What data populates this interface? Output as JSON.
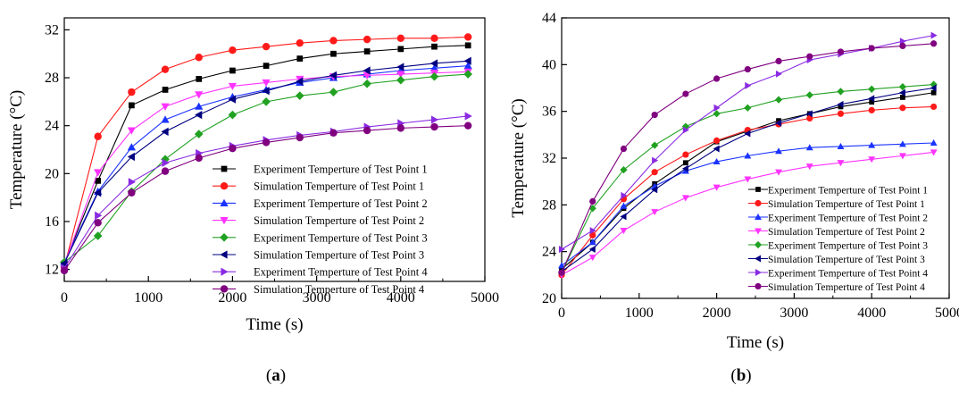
{
  "chart_data": [
    {
      "panel_label": "a",
      "type": "line",
      "xlabel": "Time (s)",
      "ylabel": "Temperature (°C)",
      "xlim": [
        0,
        5000
      ],
      "ylim": [
        11,
        33
      ],
      "xticks": [
        0,
        1000,
        2000,
        3000,
        4000,
        5000
      ],
      "yticks": [
        12,
        16,
        20,
        24,
        28,
        32
      ],
      "legend_position": "lower-right",
      "x": [
        0,
        400,
        800,
        1200,
        1600,
        2000,
        2400,
        2800,
        3200,
        3600,
        4000,
        4400,
        4800
      ],
      "series": [
        {
          "name": "Experiment Temperture of Test Point 1",
          "color": "#000000",
          "marker": "square",
          "values": [
            12.5,
            19.4,
            25.7,
            27.0,
            27.9,
            28.6,
            29.0,
            29.6,
            30.0,
            30.2,
            30.4,
            30.6,
            30.7
          ]
        },
        {
          "name": "Simulation Temperture of Test Point 1",
          "color": "#ff1a1a",
          "marker": "circle",
          "values": [
            12.2,
            23.1,
            26.8,
            28.7,
            29.7,
            30.3,
            30.6,
            30.9,
            31.1,
            31.2,
            31.3,
            31.3,
            31.4
          ]
        },
        {
          "name": "Experiment Temperture of Test Point 2",
          "color": "#1a33ff",
          "marker": "triangle-up",
          "values": [
            12.6,
            18.5,
            22.2,
            24.5,
            25.6,
            26.4,
            27.0,
            27.6,
            28.0,
            28.3,
            28.6,
            28.8,
            29.0
          ]
        },
        {
          "name": "Simulation Temperture of Test Point 2",
          "color": "#ff33ff",
          "marker": "triangle-down",
          "values": [
            12.4,
            20.1,
            23.6,
            25.6,
            26.6,
            27.3,
            27.6,
            27.9,
            28.1,
            28.2,
            28.3,
            28.4,
            28.5
          ]
        },
        {
          "name": "Experiment Temperture of Test Point 3",
          "color": "#21a121",
          "marker": "diamond",
          "values": [
            12.6,
            14.8,
            18.5,
            21.2,
            23.3,
            24.9,
            26.0,
            26.5,
            26.8,
            27.5,
            27.8,
            28.1,
            28.3
          ]
        },
        {
          "name": "Simulation Temperture of Test Point 3",
          "color": "#000080",
          "marker": "triangle-left",
          "values": [
            12.5,
            18.4,
            21.4,
            23.5,
            24.9,
            26.2,
            26.9,
            27.7,
            28.2,
            28.6,
            28.9,
            29.2,
            29.4
          ]
        },
        {
          "name": "Experiment Temperture of Test Point 4",
          "color": "#8a2be2",
          "marker": "triangle-right",
          "values": [
            12.1,
            16.5,
            19.3,
            20.9,
            21.7,
            22.3,
            22.8,
            23.2,
            23.5,
            23.9,
            24.2,
            24.5,
            24.8
          ]
        },
        {
          "name": "Simulation Temperture of Test Point 4",
          "color": "#800080",
          "marker": "circle",
          "values": [
            11.9,
            15.9,
            18.4,
            20.2,
            21.3,
            22.1,
            22.6,
            23.0,
            23.4,
            23.6,
            23.8,
            23.9,
            24.0
          ]
        }
      ]
    },
    {
      "panel_label": "b",
      "type": "line",
      "xlabel": "Time (s)",
      "ylabel": "Temperature (°C)",
      "xlim": [
        0,
        5000
      ],
      "ylim": [
        20,
        44
      ],
      "xticks": [
        0,
        1000,
        2000,
        3000,
        4000,
        5000
      ],
      "yticks": [
        20,
        24,
        28,
        32,
        36,
        40,
        44
      ],
      "legend_position": "lower-right",
      "x": [
        0,
        400,
        800,
        1200,
        1600,
        2000,
        2400,
        2800,
        3200,
        3600,
        4000,
        4400,
        4800
      ],
      "series": [
        {
          "name": "Experiment Temperture of Test Point 1",
          "color": "#000000",
          "marker": "square",
          "values": [
            22.5,
            24.8,
            27.7,
            29.8,
            31.6,
            33.4,
            34.3,
            35.2,
            35.8,
            36.4,
            36.8,
            37.2,
            37.6
          ]
        },
        {
          "name": "Simulation Temperture of Test Point 1",
          "color": "#ff1a1a",
          "marker": "circle",
          "values": [
            22.0,
            25.4,
            28.5,
            30.8,
            32.3,
            33.5,
            34.4,
            34.9,
            35.4,
            35.8,
            36.1,
            36.3,
            36.4
          ]
        },
        {
          "name": "Experiment Temperture of Test Point 2",
          "color": "#1a33ff",
          "marker": "triangle-up",
          "values": [
            22.8,
            24.8,
            27.9,
            29.6,
            30.9,
            31.7,
            32.2,
            32.6,
            32.9,
            33.0,
            33.1,
            33.2,
            33.3
          ]
        },
        {
          "name": "Simulation Temperture of Test Point 2",
          "color": "#ff33ff",
          "marker": "triangle-down",
          "values": [
            22.0,
            23.5,
            25.8,
            27.4,
            28.6,
            29.5,
            30.2,
            30.8,
            31.3,
            31.6,
            31.9,
            32.2,
            32.5
          ]
        },
        {
          "name": "Experiment Temperture of Test Point 3",
          "color": "#21a121",
          "marker": "diamond",
          "values": [
            22.2,
            27.7,
            31.0,
            33.1,
            34.7,
            35.8,
            36.3,
            37.0,
            37.4,
            37.7,
            37.9,
            38.1,
            38.3
          ]
        },
        {
          "name": "Simulation Temperture of Test Point 3",
          "color": "#000080",
          "marker": "triangle-left",
          "values": [
            22.3,
            24.2,
            27.0,
            29.3,
            31.1,
            32.8,
            34.1,
            35.0,
            35.8,
            36.6,
            37.1,
            37.6,
            38.0
          ]
        },
        {
          "name": "Experiment Temperture of Test Point 4",
          "color": "#8a2be2",
          "marker": "triangle-right",
          "values": [
            24.2,
            25.8,
            28.8,
            31.8,
            34.4,
            36.3,
            38.2,
            39.2,
            40.4,
            40.9,
            41.4,
            42.0,
            42.5
          ]
        },
        {
          "name": "Simulation Temperture of Test Point 4",
          "color": "#800080",
          "marker": "circle",
          "values": [
            22.2,
            28.3,
            32.8,
            35.7,
            37.5,
            38.8,
            39.6,
            40.3,
            40.7,
            41.1,
            41.4,
            41.6,
            41.8
          ]
        }
      ]
    }
  ]
}
